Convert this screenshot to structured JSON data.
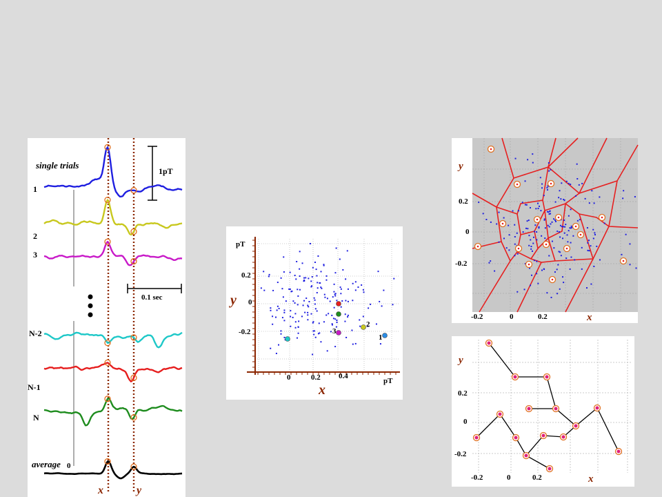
{
  "colors": {
    "background": "#dcdcdc",
    "axis_brown": "#8b2500",
    "trace_blue": "#1f1fe0",
    "trace_yellow": "#c8c81e",
    "trace_magenta": "#c819c8",
    "trace_cyan": "#1ec8c8",
    "trace_red": "#e61e1e",
    "trace_green": "#1e8c1e",
    "trace_black": "#000000",
    "voronoi_red": "#e62020",
    "voronoi_fill": "#c8c8c8",
    "marker_orange": "#e07020"
  },
  "trials_panel": {
    "title": "single trials",
    "labels": {
      "t1": "1",
      "t2": "2",
      "t3": "3",
      "tn2": "N-2",
      "tn1": "N-1",
      "tn": "N"
    },
    "average_label": "average",
    "scale_amplitude": "1pT",
    "scale_time": "0.1 sec",
    "time_zero": "0",
    "x_marker": "x",
    "y_marker": "y"
  },
  "scatter_panel": {
    "unit_y": "pT",
    "unit_x": "pT",
    "y_ticks": [
      "0.2",
      "0",
      "-0.2"
    ],
    "x_ticks": [
      "0",
      "0.2",
      "0.4"
    ],
    "x_axis": "x",
    "y_axis": "y",
    "point_labels": [
      "1",
      "2",
      "3"
    ]
  },
  "voronoi_panel": {
    "y_ticks": [
      "0.2",
      "0",
      "-0.2"
    ],
    "x_ticks": [
      "-0.2",
      "0",
      "0.2"
    ],
    "x_axis": "x",
    "y_axis": "y"
  },
  "path_panel": {
    "y_ticks": [
      "0.2",
      "0",
      "-0.2"
    ],
    "x_ticks": [
      "-0.2",
      "0",
      "0.2"
    ],
    "x_axis": "x",
    "y_axis": "y"
  }
}
